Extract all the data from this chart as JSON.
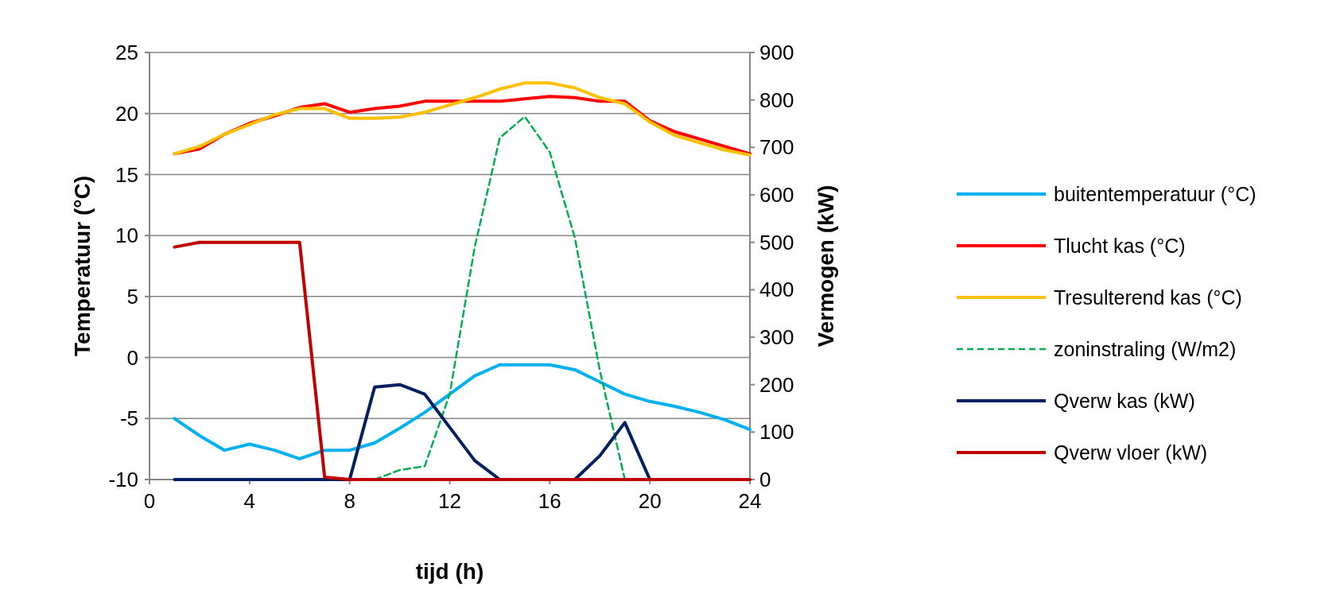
{
  "chart_data": {
    "type": "line",
    "xlabel": "tijd (h)",
    "ylabel": "Temperatuur (°C)",
    "y2label": "Vermogen (kW)",
    "x": [
      1,
      2,
      3,
      4,
      5,
      6,
      7,
      8,
      9,
      10,
      11,
      12,
      13,
      14,
      15,
      16,
      17,
      18,
      19,
      20,
      21,
      22,
      23,
      24
    ],
    "xlim": [
      0,
      24
    ],
    "xticks": [
      0,
      4,
      8,
      12,
      16,
      20,
      24
    ],
    "ylim": [
      -10,
      25
    ],
    "yticks": [
      -10,
      -5,
      0,
      5,
      10,
      15,
      20,
      25
    ],
    "y2lim": [
      0,
      900
    ],
    "y2ticks": [
      0,
      100,
      200,
      300,
      400,
      500,
      600,
      700,
      800,
      900
    ],
    "grid": "y",
    "legend": "right",
    "marker": "none",
    "series": [
      {
        "name": "buitentemperatuur (°C)",
        "color": "#00b0f0",
        "values": [
          -5,
          -6.4,
          -7.6,
          -7.1,
          -7.6,
          -8.3,
          -7.6,
          -7.6,
          -7,
          -5.8,
          -4.5,
          -3,
          -1.5,
          -0.6,
          -0.6,
          -0.6,
          -1,
          -2,
          -3,
          -3.6,
          -4,
          -4.5,
          -5.1,
          -5.9
        ]
      },
      {
        "name": "Tlucht kas  (°C)",
        "color": "#ff0000",
        "values": [
          16.7,
          17.1,
          18.3,
          19.2,
          19.8,
          20.5,
          20.8,
          20.1,
          20.4,
          20.6,
          21,
          21,
          21,
          21,
          21.2,
          21.4,
          21.3,
          21,
          21,
          19.4,
          18.5,
          17.9,
          17.3,
          16.7
        ]
      },
      {
        "name": "Tresulterend kas  (°C)",
        "color": "#ffc000",
        "values": [
          16.7,
          17.3,
          18.3,
          19.1,
          19.9,
          20.4,
          20.4,
          19.6,
          19.6,
          19.7,
          20.1,
          20.7,
          21.3,
          22,
          22.5,
          22.5,
          22.1,
          21.3,
          20.8,
          19.3,
          18.2,
          17.6,
          17,
          16.6
        ]
      },
      {
        "name": "zoninstraling (W/m2)",
        "color": "#00b050",
        "axis": "y2",
        "line_style": "dashed",
        "values": [
          null,
          null,
          null,
          null,
          null,
          null,
          null,
          null,
          0,
          20,
          28,
          180,
          490,
          720,
          765,
          690,
          510,
          230,
          0,
          null,
          null,
          null,
          null,
          null
        ]
      },
      {
        "name": "Qverw kas (kW)",
        "color": "#002060",
        "axis": "y2",
        "values": [
          0,
          0,
          0,
          0,
          0,
          0,
          0,
          0,
          195,
          200,
          180,
          110,
          40,
          0,
          0,
          0,
          0,
          50,
          120,
          0,
          0,
          null,
          null,
          null
        ]
      },
      {
        "name": "Qverw vloer (kW)",
        "color": "#c00000",
        "axis": "y2",
        "values": [
          490,
          500,
          500,
          500,
          500,
          500,
          5,
          0,
          0,
          0,
          0,
          0,
          0,
          0,
          0,
          0,
          0,
          0,
          0,
          0,
          0,
          0,
          0,
          0
        ]
      }
    ]
  }
}
